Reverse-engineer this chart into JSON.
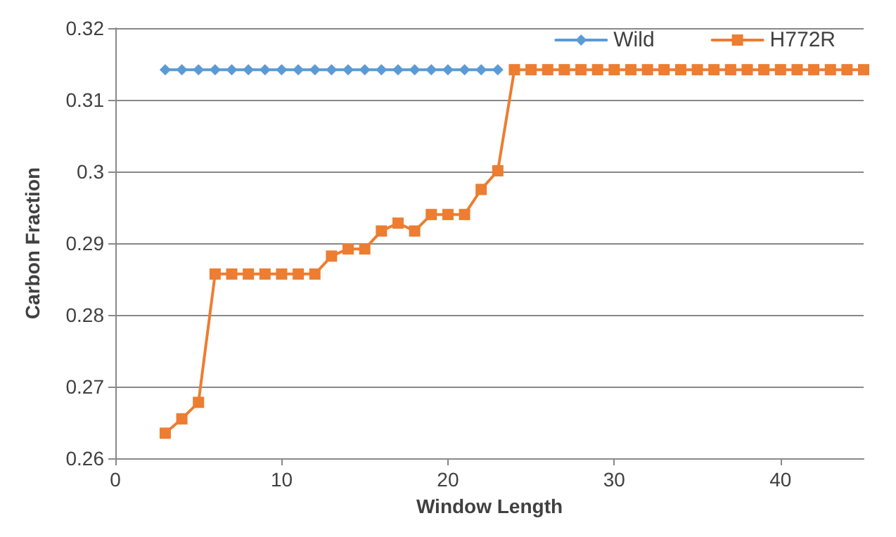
{
  "chart_data": {
    "type": "line",
    "xlabel": "Window Length",
    "ylabel": "Carbon Fraction",
    "xlim": [
      0,
      45
    ],
    "xticks": [
      0,
      10,
      20,
      30,
      40
    ],
    "ylim": [
      0.26,
      0.32
    ],
    "yticks": [
      0.26,
      0.27,
      0.28,
      0.29,
      0.3,
      0.31,
      0.32
    ],
    "grid": "y",
    "legend": "top right",
    "series": [
      {
        "name": "Wild",
        "color": "#5b9bd5",
        "marker": "diamond",
        "x": [
          3,
          4,
          5,
          6,
          7,
          8,
          9,
          10,
          11,
          12,
          13,
          14,
          15,
          16,
          17,
          18,
          19,
          20,
          21,
          22,
          23
        ],
        "values": [
          0.3142,
          0.3142,
          0.3142,
          0.3142,
          0.3142,
          0.3142,
          0.3142,
          0.3142,
          0.3142,
          0.3142,
          0.3142,
          0.3142,
          0.3142,
          0.3142,
          0.3142,
          0.3142,
          0.3142,
          0.3142,
          0.3142,
          0.3142,
          0.3142
        ]
      },
      {
        "name": "H772R",
        "color": "#ed7d31",
        "marker": "square",
        "x": [
          3,
          4,
          5,
          6,
          7,
          8,
          9,
          10,
          11,
          12,
          13,
          14,
          15,
          16,
          17,
          18,
          19,
          20,
          21,
          22,
          23,
          24,
          25,
          26,
          27,
          28,
          29,
          30,
          31,
          32,
          33,
          34,
          35,
          36,
          37,
          38,
          39,
          40,
          41,
          42,
          43,
          44,
          45
        ],
        "values": [
          0.2635,
          0.2655,
          0.2678,
          0.2857,
          0.2857,
          0.2857,
          0.2857,
          0.2857,
          0.2857,
          0.2857,
          0.2882,
          0.2892,
          0.2892,
          0.2917,
          0.2928,
          0.2917,
          0.294,
          0.294,
          0.294,
          0.2975,
          0.3001,
          0.3142,
          0.3142,
          0.3142,
          0.3142,
          0.3142,
          0.3142,
          0.3142,
          0.3142,
          0.3142,
          0.3142,
          0.3142,
          0.3142,
          0.3142,
          0.3142,
          0.3142,
          0.3142,
          0.3142,
          0.3142,
          0.3142,
          0.3142,
          0.3142,
          0.3142
        ]
      }
    ]
  }
}
